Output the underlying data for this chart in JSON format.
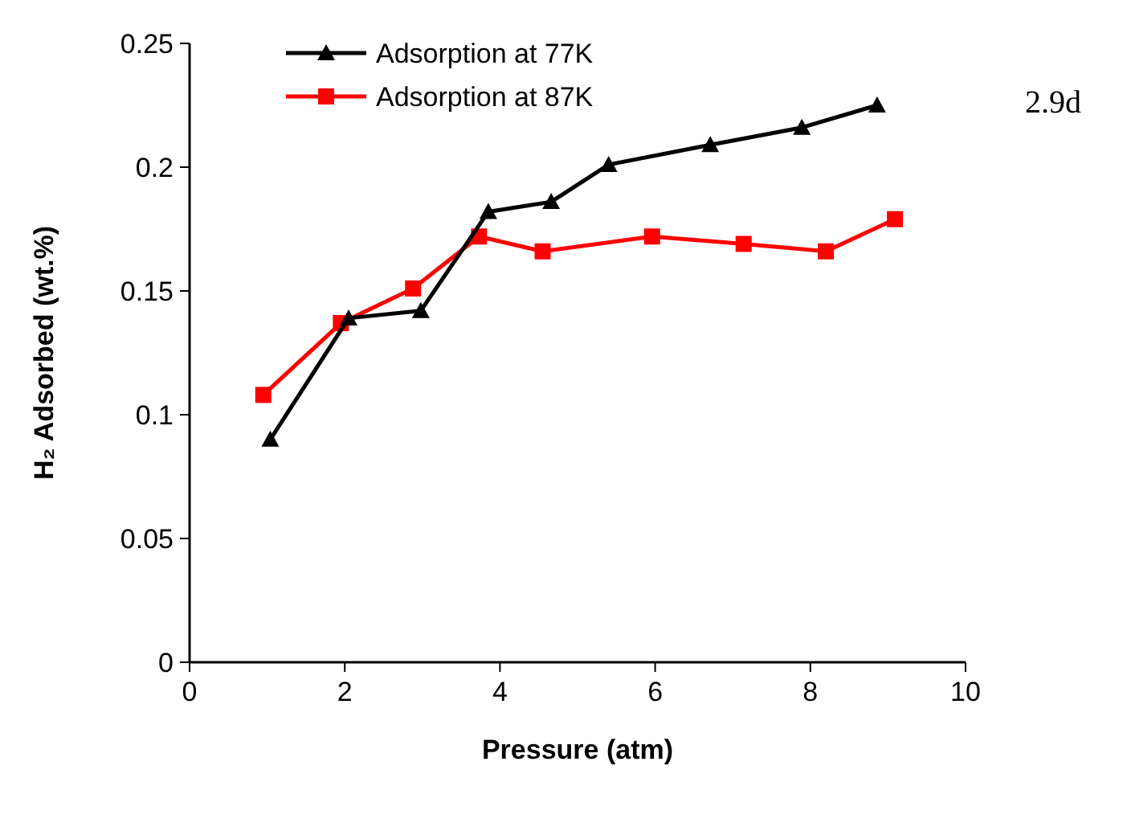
{
  "chart_data": {
    "type": "line",
    "xlabel": "Pressure (atm)",
    "ylabel": "H₂ Adsorbed (wt.%)",
    "xlim": [
      0,
      10
    ],
    "xticks": [
      0,
      2,
      4,
      6,
      8,
      10
    ],
    "ylim": [
      0,
      0.25
    ],
    "yticks": [
      0,
      0.05,
      0.1,
      0.15,
      0.2,
      0.25
    ],
    "grid": false,
    "legend": "top left",
    "annotations": [
      "2.9d"
    ],
    "series": [
      {
        "name": "Adsorption at 77K",
        "color": "#000000",
        "marker": "triangle",
        "x": [
          1.04,
          2.05,
          2.98,
          3.85,
          4.66,
          5.4,
          6.71,
          7.89,
          8.86
        ],
        "values": [
          0.09,
          0.139,
          0.142,
          0.182,
          0.186,
          0.201,
          0.209,
          0.216,
          0.225
        ]
      },
      {
        "name": "Adsorption at 87K",
        "color": "#ff0000",
        "marker": "square",
        "x": [
          0.95,
          1.95,
          2.88,
          3.73,
          4.55,
          5.96,
          7.14,
          8.2,
          9.09
        ],
        "values": [
          0.108,
          0.137,
          0.151,
          0.172,
          0.166,
          0.172,
          0.169,
          0.166,
          0.179
        ]
      }
    ]
  }
}
